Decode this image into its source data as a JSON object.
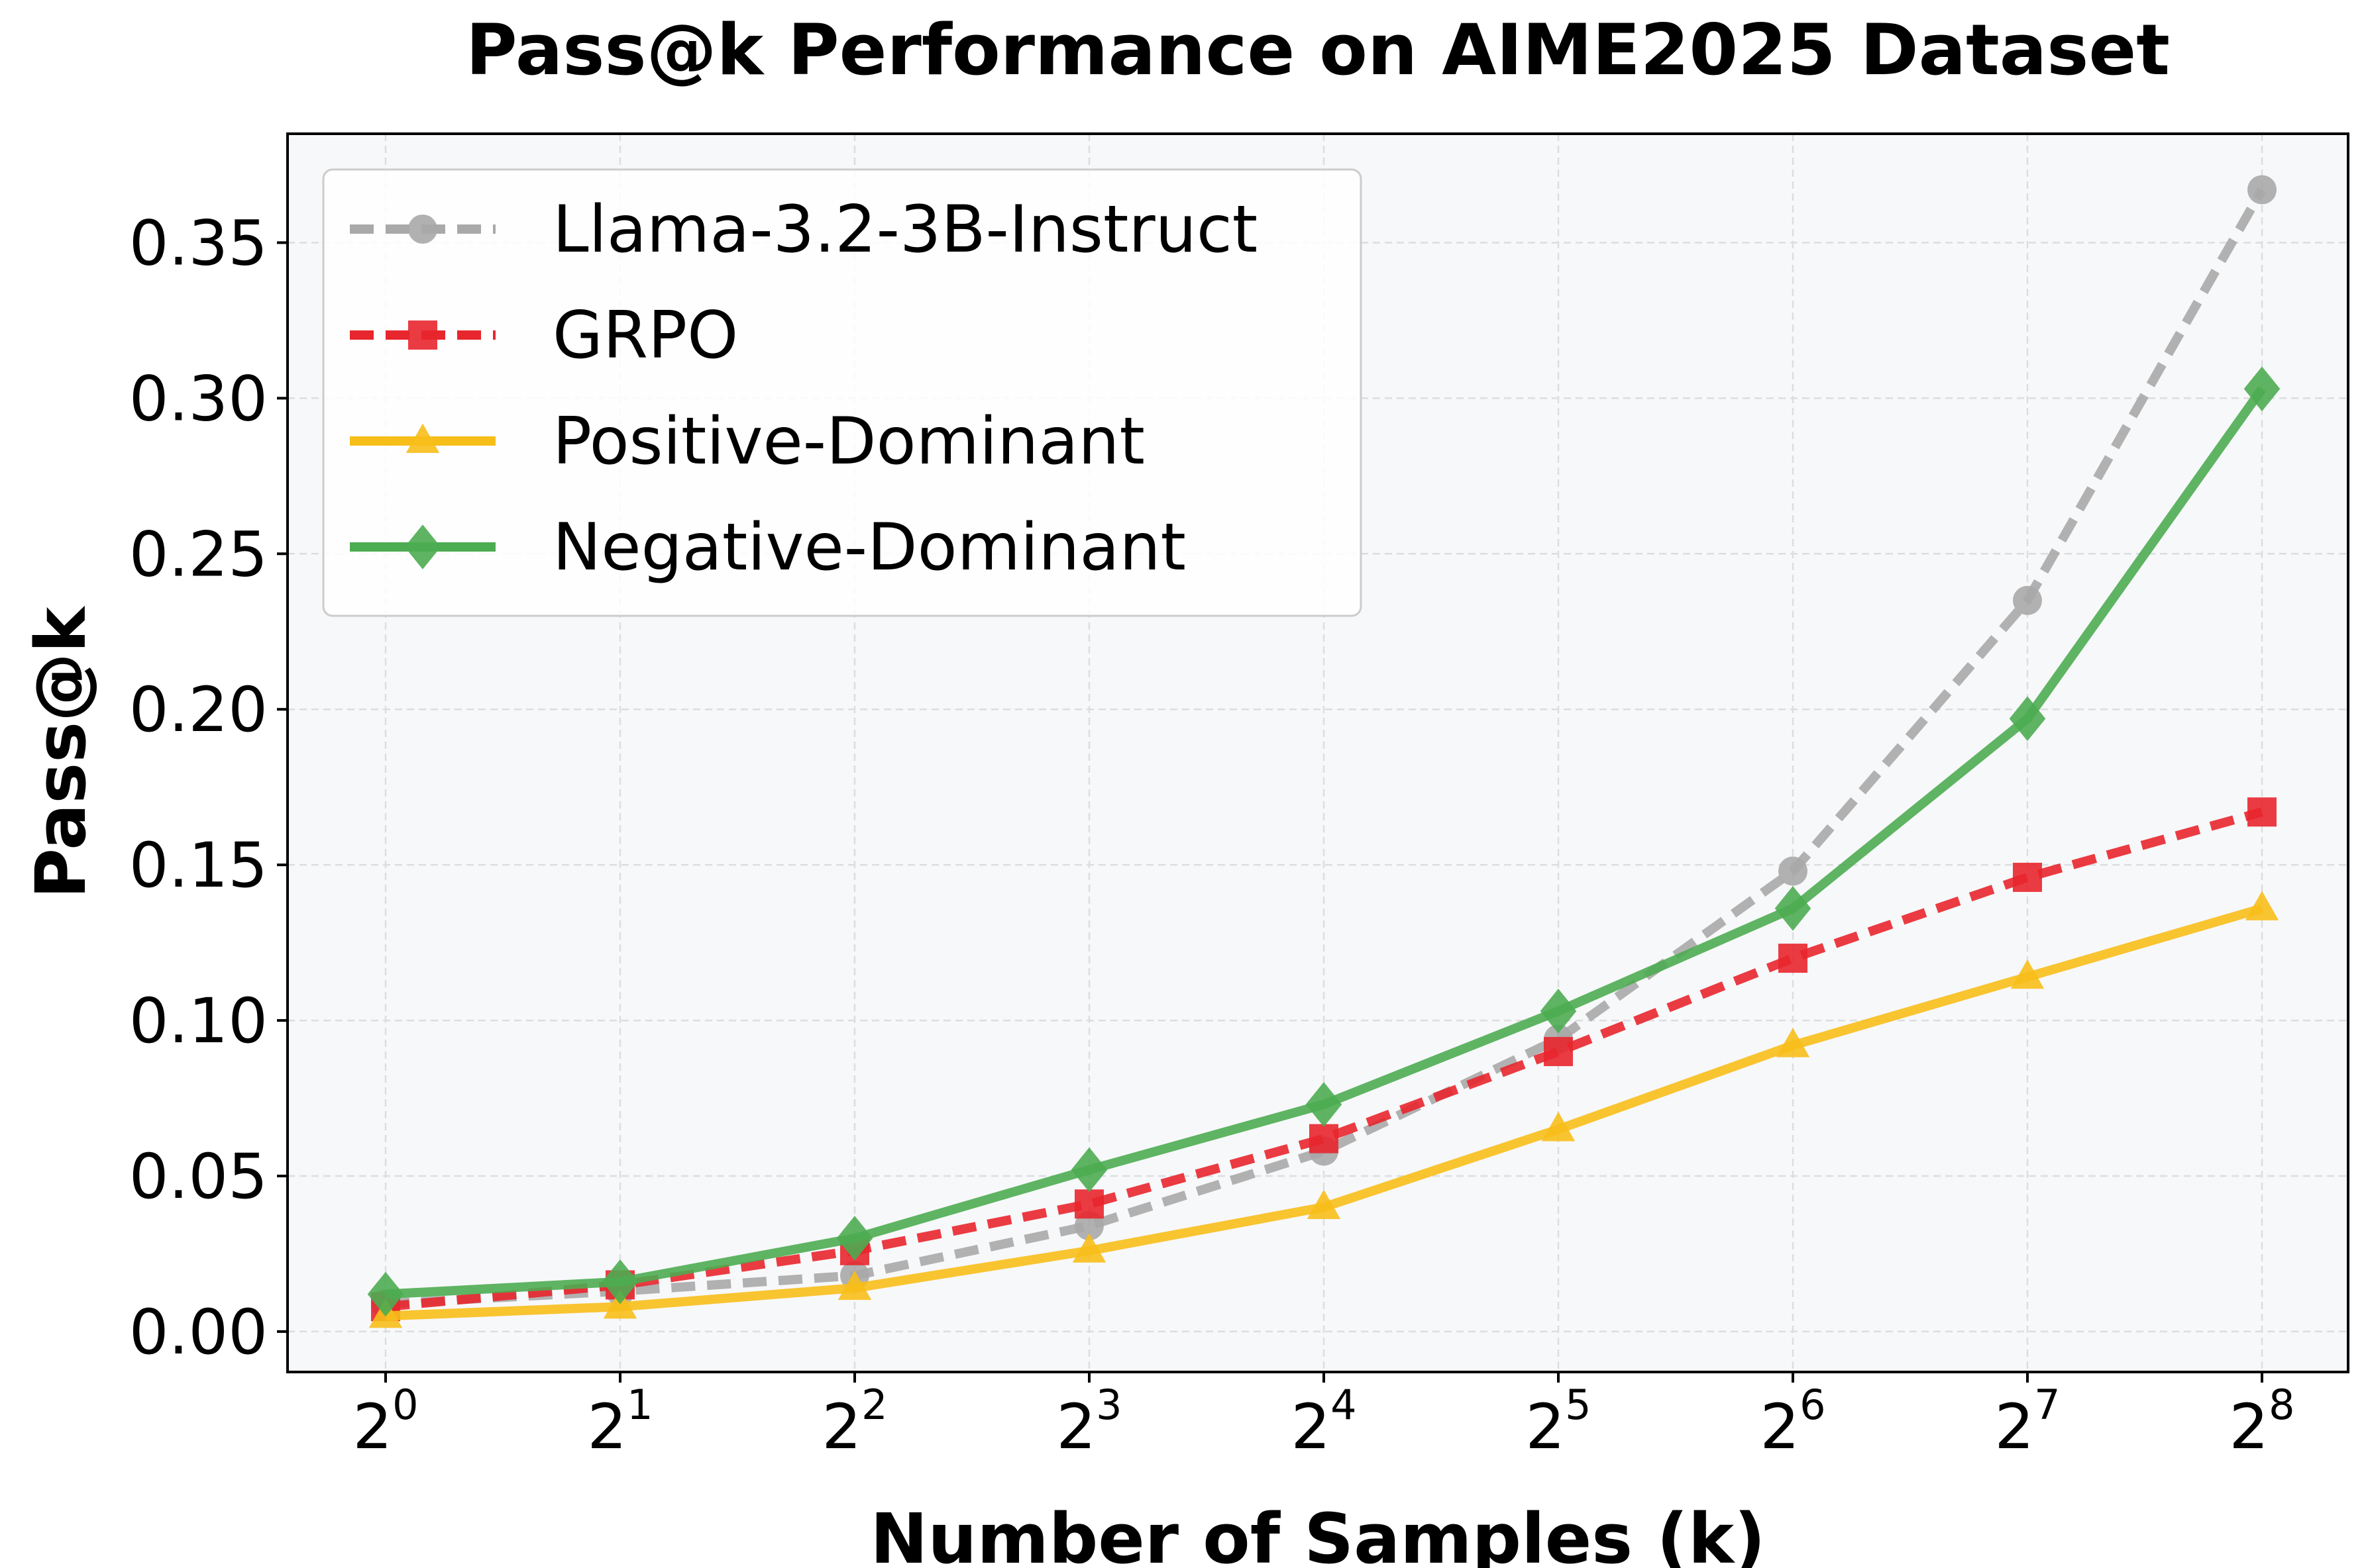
{
  "chart_data": {
    "type": "line",
    "title": "Pass@k Performance on AIME2025 Dataset",
    "xlabel": "Number of Samples (k)",
    "ylabel": "Pass@k",
    "x_scale": "log2",
    "x_base": "2",
    "x_exponents": [
      "0",
      "1",
      "2",
      "3",
      "4",
      "5",
      "6",
      "7",
      "8"
    ],
    "x": [
      1,
      2,
      4,
      8,
      16,
      32,
      64,
      128,
      256
    ],
    "ylim": [
      -0.013,
      0.385
    ],
    "yticks": [
      "0.00",
      "0.05",
      "0.10",
      "0.15",
      "0.20",
      "0.25",
      "0.30",
      "0.35"
    ],
    "ytick_values": [
      0.0,
      0.05,
      0.1,
      0.15,
      0.2,
      0.25,
      0.3,
      0.35
    ],
    "grid": true,
    "legend_position": "top-left",
    "series": [
      {
        "name": "Llama-3.2-3B-Instruct",
        "color": "#a9a9a9",
        "line": "dashed",
        "marker": "circle",
        "values": [
          0.009,
          0.013,
          0.018,
          0.034,
          0.058,
          0.094,
          0.148,
          0.235,
          0.367
        ]
      },
      {
        "name": "GRPO",
        "color": "#e8262e",
        "line": "dashed",
        "marker": "square",
        "values": [
          0.008,
          0.015,
          0.026,
          0.041,
          0.062,
          0.09,
          0.12,
          0.146,
          0.167
        ]
      },
      {
        "name": "Positive-Dominant",
        "color": "#f7be1a",
        "line": "solid",
        "marker": "triangle",
        "values": [
          0.005,
          0.008,
          0.014,
          0.026,
          0.04,
          0.065,
          0.092,
          0.114,
          0.136
        ]
      },
      {
        "name": "Negative-Dominant",
        "color": "#4cac51",
        "line": "solid",
        "marker": "diamond",
        "values": [
          0.012,
          0.016,
          0.03,
          0.052,
          0.073,
          0.103,
          0.136,
          0.197,
          0.303
        ]
      }
    ]
  }
}
